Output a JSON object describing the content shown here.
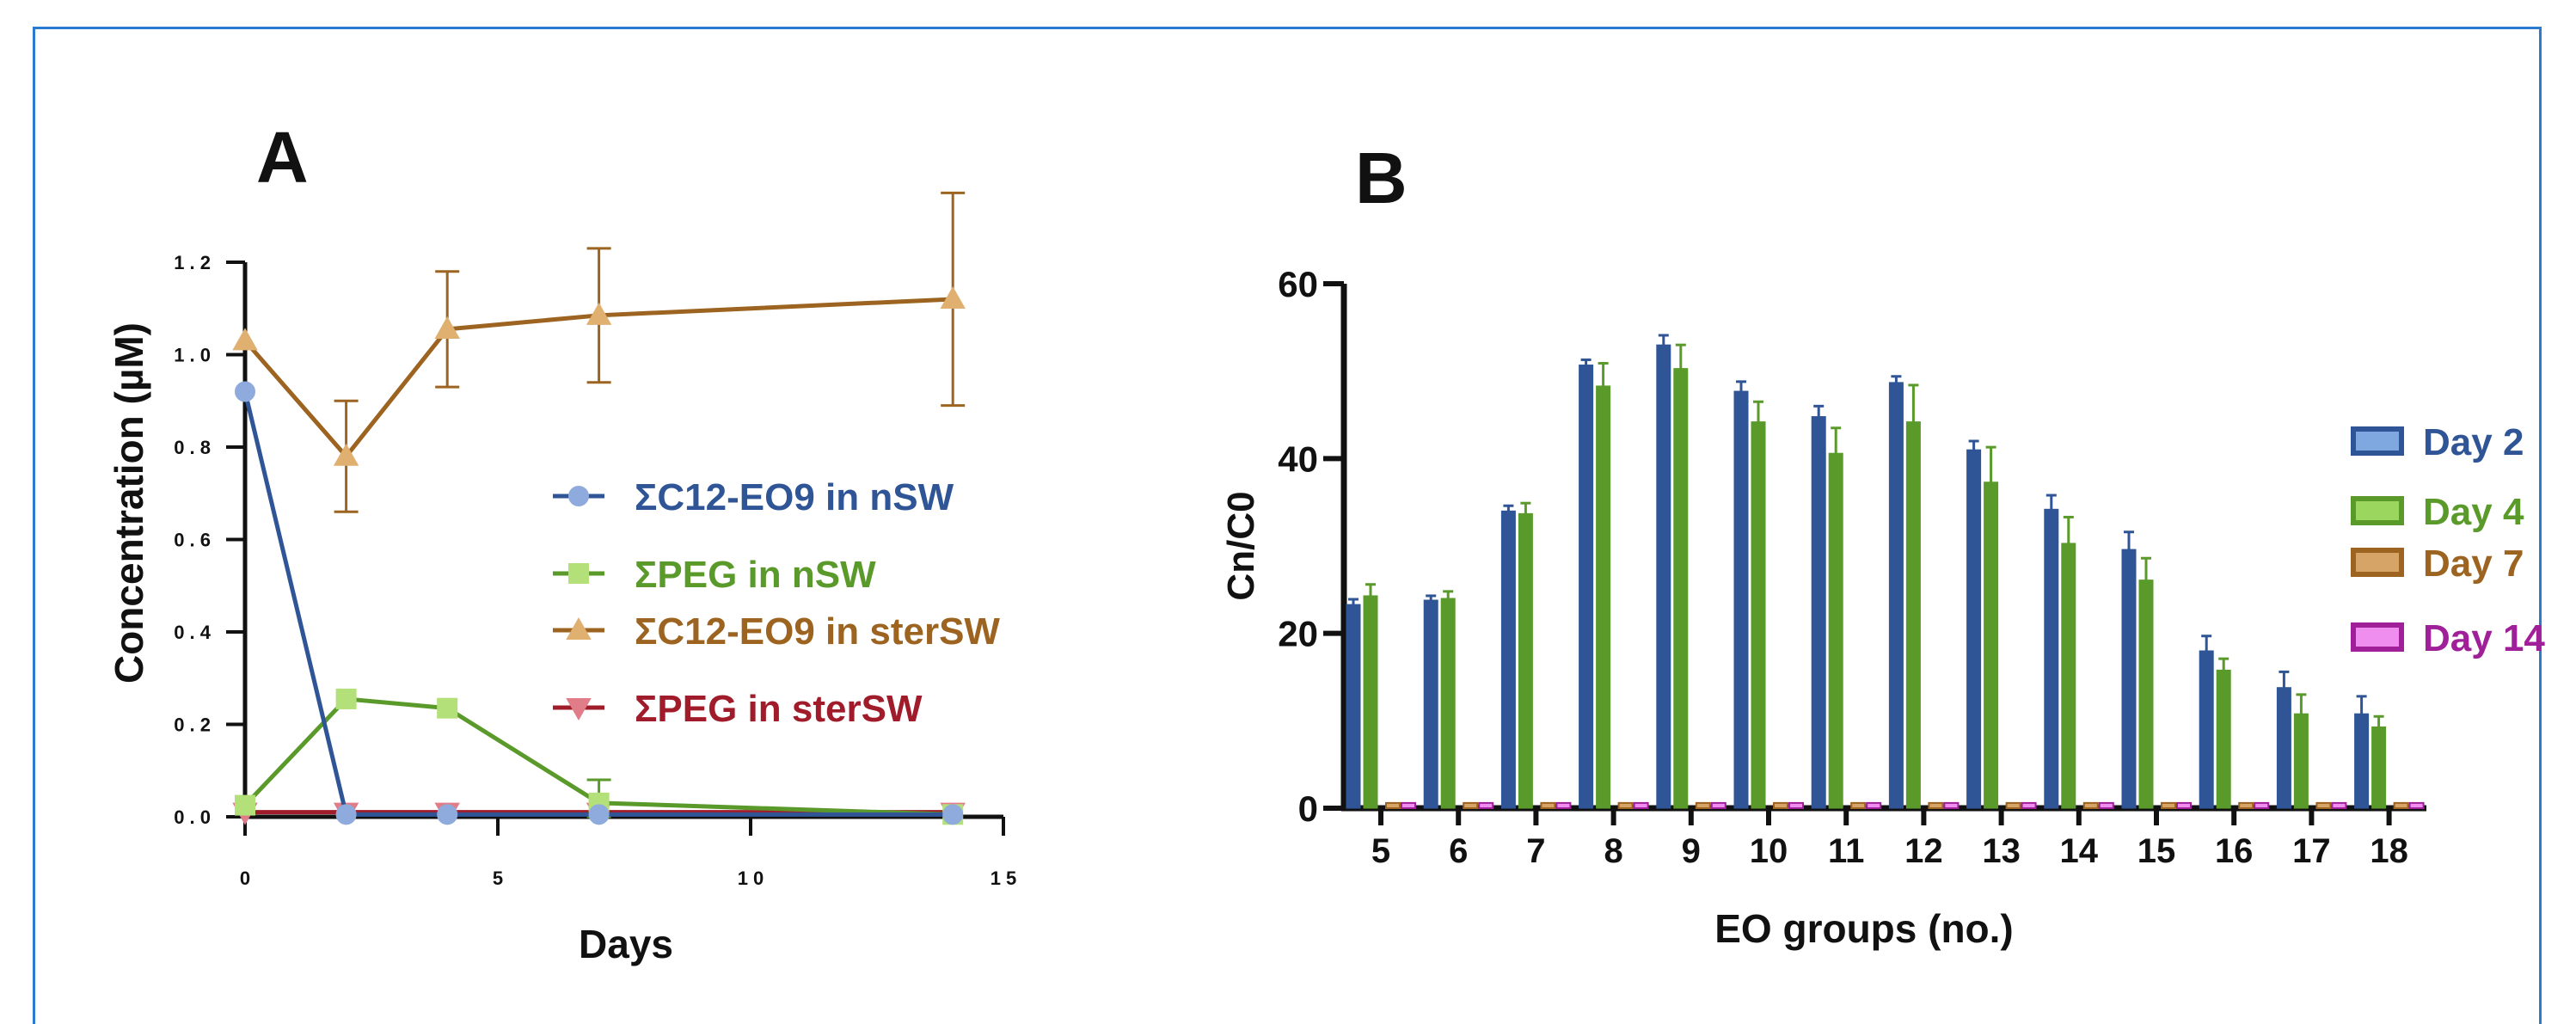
{
  "colors": {
    "c12eo9_nsw": "#2f5597",
    "c12eo9_nsw_marker": "#8faadc",
    "peg_nsw": "#5a9a2a",
    "peg_nsw_marker": "#b4e07a",
    "c12eo9_stersw": "#9c6420",
    "c12eo9_stersw_marker": "#e0b070",
    "peg_stersw": "#a01c2a",
    "peg_stersw_marker": "#e07d88",
    "day2_fill": "#2f5597",
    "day2_legend_fill": "#7fa8e0",
    "day4_fill": "#5a9a2a",
    "day4_legend_fill": "#9bd65f",
    "day7_fill": "#d7a468",
    "day7_stroke": "#9c6420",
    "day14_fill": "#f08ef0",
    "day14_stroke": "#a0209a",
    "frame": "#2a7bd0"
  },
  "chart_data": [
    {
      "panel_label": "A",
      "type": "line",
      "xlabel": "Days",
      "ylabel": "Concentration (µM)",
      "xlim": [
        0,
        15
      ],
      "ylim": [
        0,
        1.2
      ],
      "xticks": [
        0,
        5,
        10,
        15
      ],
      "xtick_labels": [
        "0",
        "5",
        "1 0",
        "1 5"
      ],
      "yticks": [
        0,
        0.2,
        0.4,
        0.6,
        0.8,
        1.0,
        1.2
      ],
      "ytick_labels": [
        "0 . 0",
        "0 . 2",
        "0 . 4",
        "0 . 6",
        "0 . 8",
        "1 . 0",
        "1 . 2"
      ],
      "legend_position": "center-right",
      "series": [
        {
          "name": "ΣC12-EO9 in nSW",
          "marker": "circle",
          "color_key": "c12eo9_nsw",
          "x": [
            0,
            2,
            4,
            7,
            14
          ],
          "y": [
            0.92,
            0.005,
            0.005,
            0.005,
            0.005
          ],
          "err": [
            0,
            0,
            0,
            0,
            0
          ]
        },
        {
          "name": "ΣPEG in nSW",
          "marker": "square",
          "color_key": "peg_nsw",
          "x": [
            0,
            2,
            4,
            7,
            14
          ],
          "y": [
            0.025,
            0.255,
            0.235,
            0.03,
            0.005
          ],
          "err": [
            0,
            0,
            0,
            0.05,
            0
          ]
        },
        {
          "name": "ΣC12-EO9 in sterSW",
          "marker": "triangle-up",
          "color_key": "c12eo9_stersw",
          "x": [
            0,
            2,
            4,
            7,
            14
          ],
          "y": [
            1.03,
            0.78,
            1.055,
            1.085,
            1.12
          ],
          "err": [
            0,
            0.12,
            0.125,
            0.145,
            0.23
          ]
        },
        {
          "name": "ΣPEG in sterSW",
          "marker": "triangle-down",
          "color_key": "peg_stersw",
          "x": [
            0,
            2,
            4,
            7,
            14
          ],
          "y": [
            0.01,
            0.01,
            0.01,
            0.01,
            0.01
          ],
          "err": [
            0,
            0,
            0,
            0,
            0
          ]
        }
      ]
    },
    {
      "panel_label": "B",
      "type": "bar",
      "xlabel": "EO groups (no.)",
      "ylabel": "Cn/C0",
      "ylim": [
        0,
        60
      ],
      "yticks": [
        0,
        20,
        40,
        60
      ],
      "categories": [
        "5",
        "6",
        "7",
        "8",
        "9",
        "10",
        "11",
        "12",
        "13",
        "14",
        "15",
        "16",
        "17",
        "18"
      ],
      "legend_position": "right",
      "series": [
        {
          "name": "Day 2",
          "color_key": "day2_fill",
          "legend_color_key": "day2_legend_fill",
          "values": [
            23.3,
            23.8,
            34.0,
            50.7,
            53.0,
            47.7,
            44.8,
            48.7,
            41.0,
            34.2,
            29.6,
            18.0,
            13.8,
            10.8
          ],
          "err": [
            0.6,
            0.5,
            0.6,
            0.6,
            1.1,
            1.1,
            1.2,
            0.7,
            1.0,
            1.6,
            2.0,
            1.7,
            1.8,
            2.0
          ]
        },
        {
          "name": "Day 4",
          "color_key": "day4_fill",
          "legend_color_key": "day4_legend_fill",
          "values": [
            24.3,
            24.0,
            33.7,
            48.3,
            50.3,
            44.2,
            40.6,
            44.2,
            37.3,
            30.3,
            26.1,
            15.8,
            10.8,
            9.3
          ],
          "err": [
            1.3,
            0.8,
            1.2,
            2.6,
            2.7,
            2.3,
            2.9,
            4.2,
            4.0,
            3.0,
            2.5,
            1.3,
            2.2,
            1.2
          ]
        },
        {
          "name": "Day 7",
          "color_key": "day7_fill",
          "legend_color_key": "day7_fill",
          "values": [
            0.6,
            0.6,
            0.6,
            0.6,
            0.6,
            0.6,
            0.6,
            0.6,
            0.6,
            0.6,
            0.6,
            0.6,
            0.6,
            0.6
          ],
          "err": [
            0,
            0,
            0,
            0,
            0,
            0,
            0,
            0,
            0,
            0,
            0,
            0,
            0,
            0
          ]
        },
        {
          "name": "Day 14",
          "color_key": "day14_fill",
          "legend_color_key": "day14_fill",
          "values": [
            0.6,
            0.6,
            0.6,
            0.6,
            0.6,
            0.6,
            0.6,
            0.6,
            0.6,
            0.6,
            0.6,
            0.6,
            0.6,
            0.6
          ],
          "err": [
            0,
            0,
            0,
            0,
            0,
            0,
            0,
            0,
            0,
            0,
            0,
            0,
            0,
            0
          ]
        }
      ]
    }
  ]
}
